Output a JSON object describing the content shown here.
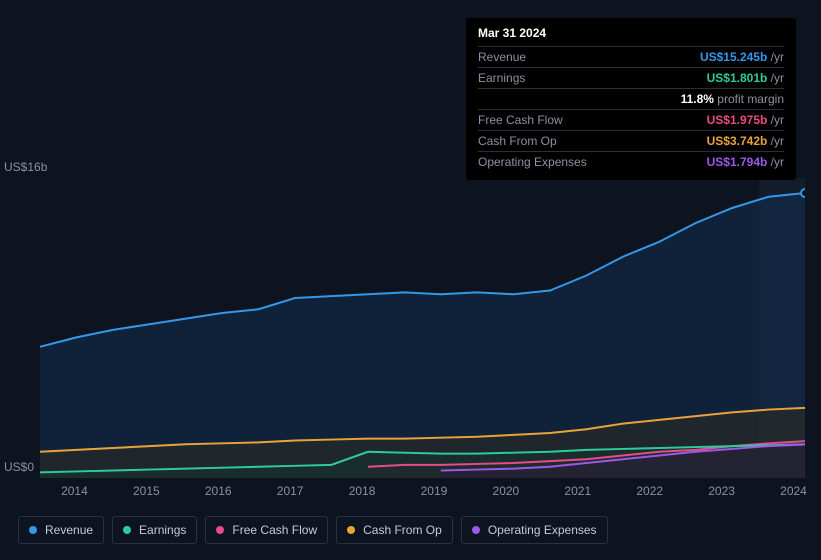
{
  "chart": {
    "type": "area-line",
    "background_color": "#0d131f",
    "grid_color": "#1a2130",
    "text_color": "#8a92a0",
    "y_axis": {
      "max_label": "US$16b",
      "min_label": "US$0",
      "ymin": 0,
      "ymax": 16
    },
    "x_axis": {
      "ticks": [
        "2014",
        "2015",
        "2016",
        "2017",
        "2018",
        "2019",
        "2020",
        "2021",
        "2022",
        "2023",
        "2024"
      ]
    },
    "hover_band": {
      "x_start": 0.94,
      "x_end": 1.0
    },
    "series": [
      {
        "id": "revenue",
        "label": "Revenue",
        "color": "#3498e8",
        "fill": "#123050",
        "fill_opacity": 0.55,
        "values": [
          7.0,
          7.5,
          7.9,
          8.2,
          8.5,
          8.8,
          9.0,
          9.6,
          9.7,
          9.8,
          9.9,
          9.8,
          9.9,
          9.8,
          10.0,
          10.8,
          11.8,
          12.6,
          13.6,
          14.4,
          15.0,
          15.2
        ]
      },
      {
        "id": "cash_from_op",
        "label": "Cash From Op",
        "color": "#e8a33a",
        "fill": "#3a2f18",
        "fill_opacity": 0.4,
        "values": [
          1.4,
          1.5,
          1.6,
          1.7,
          1.8,
          1.85,
          1.9,
          2.0,
          2.05,
          2.1,
          2.1,
          2.15,
          2.2,
          2.3,
          2.4,
          2.6,
          2.9,
          3.1,
          3.3,
          3.5,
          3.65,
          3.74
        ]
      },
      {
        "id": "free_cash_flow",
        "label": "Free Cash Flow",
        "color": "#e84b8a",
        "fill": "#3a1828",
        "fill_opacity": 0.4,
        "values": [
          null,
          null,
          null,
          null,
          null,
          null,
          null,
          null,
          null,
          0.6,
          0.7,
          0.7,
          0.75,
          0.8,
          0.9,
          1.0,
          1.2,
          1.4,
          1.5,
          1.7,
          1.85,
          1.97
        ]
      },
      {
        "id": "operating_expenses",
        "label": "Operating Expenses",
        "color": "#9b59e8",
        "fill": "#2a1840",
        "fill_opacity": 0.4,
        "values": [
          null,
          null,
          null,
          null,
          null,
          null,
          null,
          null,
          null,
          null,
          null,
          0.4,
          0.45,
          0.5,
          0.6,
          0.8,
          1.0,
          1.2,
          1.4,
          1.55,
          1.7,
          1.79
        ]
      },
      {
        "id": "earnings",
        "label": "Earnings",
        "color": "#2ecc9b",
        "fill": "#0f3a2e",
        "fill_opacity": 0.4,
        "values": [
          0.3,
          0.35,
          0.4,
          0.45,
          0.5,
          0.55,
          0.6,
          0.65,
          0.7,
          1.4,
          1.35,
          1.3,
          1.3,
          1.35,
          1.4,
          1.5,
          1.55,
          1.6,
          1.65,
          1.7,
          1.75,
          1.8
        ]
      }
    ]
  },
  "tooltip": {
    "date": "Mar 31 2024",
    "rows": [
      {
        "label": "Revenue",
        "value": "US$15.245b",
        "suffix": "/yr",
        "color": "#3498e8"
      },
      {
        "label": "Earnings",
        "value": "US$1.801b",
        "suffix": "/yr",
        "color": "#2ecc9b"
      },
      {
        "label": "",
        "value": "11.8%",
        "suffix": "profit margin",
        "color": "#ffffff"
      },
      {
        "label": "Free Cash Flow",
        "value": "US$1.975b",
        "suffix": "/yr",
        "color": "#e84b8a"
      },
      {
        "label": "Cash From Op",
        "value": "US$3.742b",
        "suffix": "/yr",
        "color": "#e8a33a"
      },
      {
        "label": "Operating Expenses",
        "value": "US$1.794b",
        "suffix": "/yr",
        "color": "#9b59e8"
      }
    ]
  },
  "legend": {
    "items": [
      {
        "id": "revenue",
        "label": "Revenue",
        "color": "#3498e8"
      },
      {
        "id": "earnings",
        "label": "Earnings",
        "color": "#2ecc9b"
      },
      {
        "id": "free_cash_flow",
        "label": "Free Cash Flow",
        "color": "#e84b8a"
      },
      {
        "id": "cash_from_op",
        "label": "Cash From Op",
        "color": "#e8a33a"
      },
      {
        "id": "operating_expenses",
        "label": "Operating Expenses",
        "color": "#9b59e8"
      }
    ]
  }
}
